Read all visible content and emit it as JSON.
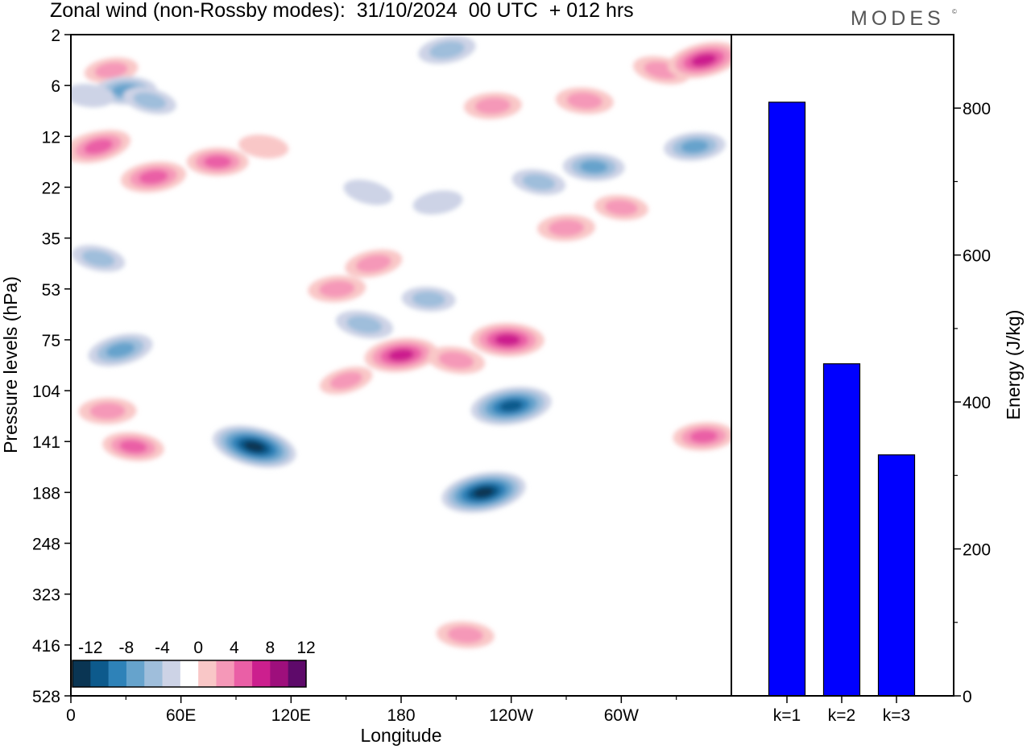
{
  "title": "Zonal wind (non-Rossby modes):  31/10/2024  00 UTC  + 012 hrs",
  "brand": "MODES",
  "brand_mark": "©",
  "chart_data": [
    {
      "type": "heatmap",
      "title": "Zonal wind (non-Rossby modes):  31/10/2024  00 UTC  + 012 hrs",
      "xlabel": "Longitude",
      "ylabel": "Pressure levels (hPa)",
      "x_ticks": [
        "0",
        "60E",
        "120E",
        "180",
        "120W",
        "60W"
      ],
      "x_tick_degrees": [
        0,
        60,
        120,
        180,
        240,
        300
      ],
      "xlim": [
        0,
        360
      ],
      "y_ticks": [
        "2",
        "6",
        "12",
        "22",
        "35",
        "53",
        "75",
        "104",
        "141",
        "188",
        "248",
        "323",
        "416",
        "528"
      ],
      "y_scale": "pressure levels (top to bottom)",
      "colorbar": {
        "labels": [
          "-12",
          "-8",
          "-4",
          "0",
          "4",
          "8",
          "12"
        ],
        "levels": [
          -14,
          -12,
          -10,
          -8,
          -6,
          -4,
          -2,
          2,
          4,
          6,
          8,
          10,
          12,
          14
        ],
        "colors": [
          "#0a3553",
          "#0d5a8c",
          "#2e82b8",
          "#66a3cc",
          "#9fbedb",
          "#cdd3e6",
          "#ffffff",
          "#f9c7c7",
          "#f598b8",
          "#ea5fa6",
          "#cc1f8e",
          "#9e0f7c",
          "#5e0a6a"
        ]
      },
      "features": [
        {
          "lon": 12,
          "level": 2.2,
          "value": 6
        },
        {
          "lon": 22,
          "level": 0.7,
          "value": 4
        },
        {
          "lon": 30,
          "level": 1.1,
          "value": -6
        },
        {
          "lon": 10,
          "level": 1.2,
          "value": -3
        },
        {
          "lon": 43,
          "level": 1.3,
          "value": -4
        },
        {
          "lon": 205,
          "level": 0.3,
          "value": -5
        },
        {
          "lon": 230,
          "level": 1.4,
          "value": 5
        },
        {
          "lon": 280,
          "level": 1.3,
          "value": 5
        },
        {
          "lon": 322,
          "level": 0.7,
          "value": 5
        },
        {
          "lon": 345,
          "level": 0.5,
          "value": 9
        },
        {
          "lon": 340,
          "level": 2.2,
          "value": -6
        },
        {
          "lon": 285,
          "level": 2.6,
          "value": -6
        },
        {
          "lon": 255,
          "level": 2.9,
          "value": -4
        },
        {
          "lon": 15,
          "level": 2.2,
          "value": 7
        },
        {
          "lon": 45,
          "level": 2.8,
          "value": 7
        },
        {
          "lon": 80,
          "level": 2.5,
          "value": 6
        },
        {
          "lon": 105,
          "level": 2.2,
          "value": 3
        },
        {
          "lon": 162,
          "level": 3.1,
          "value": -3
        },
        {
          "lon": 200,
          "level": 3.3,
          "value": -3
        },
        {
          "lon": 270,
          "level": 3.8,
          "value": 5
        },
        {
          "lon": 300,
          "level": 3.4,
          "value": 4
        },
        {
          "lon": 15,
          "level": 4.4,
          "value": -4
        },
        {
          "lon": 165,
          "level": 4.5,
          "value": 5
        },
        {
          "lon": 145,
          "level": 5.0,
          "value": 5
        },
        {
          "lon": 195,
          "level": 5.2,
          "value": -4
        },
        {
          "lon": 160,
          "level": 5.7,
          "value": -5
        },
        {
          "lon": 27,
          "level": 6.2,
          "value": -7
        },
        {
          "lon": 180,
          "level": 6.3,
          "value": 9
        },
        {
          "lon": 238,
          "level": 6.0,
          "value": 9
        },
        {
          "lon": 210,
          "level": 6.4,
          "value": 5
        },
        {
          "lon": 150,
          "level": 6.8,
          "value": 4
        },
        {
          "lon": 240,
          "level": 7.3,
          "value": -11
        },
        {
          "lon": 20,
          "level": 7.4,
          "value": 5
        },
        {
          "lon": 34,
          "level": 8.1,
          "value": 6
        },
        {
          "lon": 100,
          "level": 8.1,
          "value": -12
        },
        {
          "lon": 225,
          "level": 9.0,
          "value": -12
        },
        {
          "lon": 345,
          "level": 7.9,
          "value": 6
        },
        {
          "lon": 215,
          "level": 11.8,
          "value": 5
        }
      ]
    },
    {
      "type": "bar",
      "categories": [
        "k=1",
        "k=2",
        "k=3"
      ],
      "values": [
        808,
        452,
        328
      ],
      "ylabel": "Energy (J/kg)",
      "ylim": [
        0,
        900
      ],
      "y_ticks": [
        "0",
        "200",
        "400",
        "600",
        "800"
      ],
      "y_tick_values": [
        0,
        200,
        400,
        600,
        800
      ],
      "bar_color": "#0000ff"
    }
  ]
}
